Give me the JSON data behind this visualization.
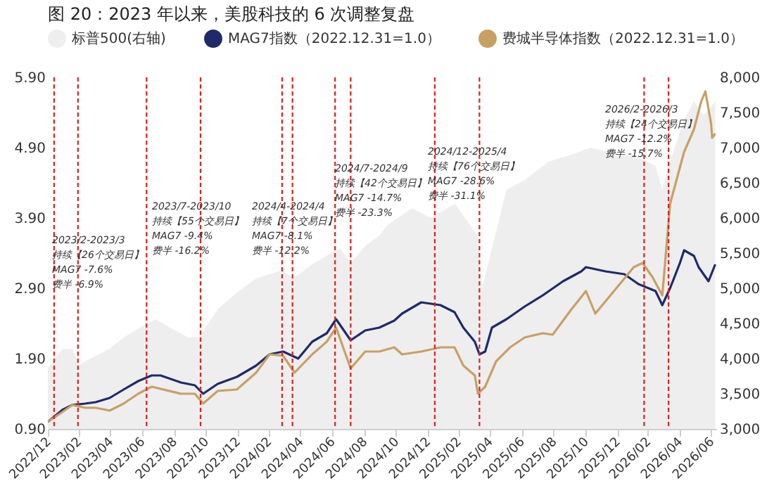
{
  "chart_data": {
    "type": "line",
    "title": "图 20：2023 年以来，美股科技的 6 次调整复盘",
    "xlim": [
      "2022-12-31",
      "2026-07-10"
    ],
    "xticks": [
      {
        "value": "2022-12-31",
        "label": "2022/12"
      },
      {
        "value": "2023-02-28",
        "label": "2023/02"
      },
      {
        "value": "2023-04-30",
        "label": "2023/04"
      },
      {
        "value": "2023-06-30",
        "label": "2023/06"
      },
      {
        "value": "2023-08-31",
        "label": "2023/08"
      },
      {
        "value": "2023-10-31",
        "label": "2023/10"
      },
      {
        "value": "2023-12-31",
        "label": "2023/12"
      },
      {
        "value": "2024-02-29",
        "label": "2024/02"
      },
      {
        "value": "2024-04-30",
        "label": "2024/04"
      },
      {
        "value": "2024-06-30",
        "label": "2024/06"
      },
      {
        "value": "2024-08-31",
        "label": "2024/08"
      },
      {
        "value": "2024-10-31",
        "label": "2024/10"
      },
      {
        "value": "2024-12-31",
        "label": "2024/12"
      },
      {
        "value": "2025-02-28",
        "label": "2025/02"
      },
      {
        "value": "2025-04-30",
        "label": "2025/04"
      },
      {
        "value": "2025-06-30",
        "label": "2025/06"
      },
      {
        "value": "2025-08-31",
        "label": "2025/08"
      },
      {
        "value": "2025-10-31",
        "label": "2025/10"
      },
      {
        "value": "2025-12-31",
        "label": "2025/12"
      },
      {
        "value": "2026-02-28",
        "label": "2026/02"
      },
      {
        "value": "2026-04-30",
        "label": "2026/04"
      },
      {
        "value": "2026-06-30",
        "label": "2026/06"
      }
    ],
    "ylim": [
      0.9,
      5.9
    ],
    "yticks": [
      {
        "value": 0.9,
        "label": "0.90"
      },
      {
        "value": 1.9,
        "label": "1.90"
      },
      {
        "value": 2.9,
        "label": "2.90"
      },
      {
        "value": 3.9,
        "label": "3.90"
      },
      {
        "value": 4.9,
        "label": "4.90"
      },
      {
        "value": 5.9,
        "label": "5.90"
      }
    ],
    "y2lim": [
      3000,
      8000
    ],
    "y2ticks": [
      {
        "value": 3000,
        "label": "3,000"
      },
      {
        "value": 3500,
        "label": "3,500"
      },
      {
        "value": 4000,
        "label": "4,000"
      },
      {
        "value": 4500,
        "label": "4,500"
      },
      {
        "value": 5000,
        "label": "5,000"
      },
      {
        "value": 5500,
        "label": "5,500"
      },
      {
        "value": 6000,
        "label": "6,000"
      },
      {
        "value": 6500,
        "label": "6,500"
      },
      {
        "value": 7000,
        "label": "7,000"
      },
      {
        "value": 7500,
        "label": "7,500"
      },
      {
        "value": 8000,
        "label": "8,000"
      }
    ],
    "grid": false,
    "legend": "top",
    "series": [
      {
        "name": "标普500(右轴)",
        "type": "area",
        "axis": "y2",
        "color": "#eeeeee",
        "x": [
          "2022-12-31",
          "2023-01-28",
          "2023-02-16",
          "2023-03-01",
          "2023-03-13",
          "2023-04-29",
          "2023-05-26",
          "2023-06-30",
          "2023-07-27",
          "2023-08-23",
          "2023-09-28",
          "2023-10-18",
          "2023-11-23",
          "2023-12-30",
          "2024-02-05",
          "2024-03-28",
          "2024-04-16",
          "2024-05-23",
          "2024-06-27",
          "2024-07-16",
          "2024-08-05",
          "2024-09-02",
          "2024-09-29",
          "2024-10-15",
          "2024-12-01",
          "2025-01-06",
          "2025-02-22",
          "2025-04-07",
          "2025-04-15",
          "2025-06-01",
          "2025-07-06",
          "2025-08-21",
          "2025-10-04",
          "2025-11-10",
          "2025-12-15",
          "2026-02-10",
          "2026-03-15",
          "2026-03-28",
          "2026-04-12",
          "2026-05-09",
          "2026-05-28",
          "2026-06-16",
          "2026-07-02",
          "2026-07-08"
        ],
        "values": [
          3860,
          4140,
          4140,
          3900,
          3960,
          4140,
          4300,
          4460,
          4560,
          4440,
          4300,
          4300,
          4700,
          4940,
          5140,
          5260,
          5140,
          5340,
          5500,
          5560,
          5360,
          5600,
          5750,
          5900,
          6140,
          6000,
          6200,
          5740,
          5000,
          6400,
          6540,
          6800,
          6900,
          7000,
          6940,
          6860,
          6740,
          6400,
          6800,
          7400,
          7660,
          7460,
          7600,
          7660
        ]
      },
      {
        "name": "MAG7指数（2022.12.31=1.0）",
        "color": "#1f2a6b",
        "x": [
          "2022-12-31",
          "2023-01-28",
          "2023-02-16",
          "2023-03-13",
          "2023-04-02",
          "2023-04-29",
          "2023-05-26",
          "2023-06-23",
          "2023-07-19",
          "2023-08-05",
          "2023-09-13",
          "2023-10-10",
          "2023-10-26",
          "2023-11-23",
          "2023-12-30",
          "2024-02-05",
          "2024-03-02",
          "2024-03-28",
          "2024-04-26",
          "2024-05-23",
          "2024-06-20",
          "2024-07-08",
          "2024-08-05",
          "2024-09-02",
          "2024-09-29",
          "2024-10-28",
          "2024-11-12",
          "2024-12-19",
          "2025-01-25",
          "2025-02-21",
          "2025-03-10",
          "2025-04-01",
          "2025-04-10",
          "2025-04-21",
          "2025-05-04",
          "2025-06-01",
          "2025-07-06",
          "2025-08-10",
          "2025-09-18",
          "2025-10-23",
          "2025-11-01",
          "2025-12-09",
          "2026-01-14",
          "2026-02-10",
          "2026-03-15",
          "2026-03-28",
          "2026-04-12",
          "2026-05-01",
          "2026-05-09",
          "2026-05-28",
          "2026-06-06",
          "2026-06-25",
          "2026-07-08"
        ],
        "values": [
          1.0,
          1.17,
          1.24,
          1.26,
          1.28,
          1.34,
          1.46,
          1.58,
          1.66,
          1.66,
          1.56,
          1.52,
          1.4,
          1.54,
          1.64,
          1.8,
          1.96,
          2.0,
          1.9,
          2.14,
          2.26,
          2.46,
          2.16,
          2.3,
          2.34,
          2.44,
          2.54,
          2.7,
          2.66,
          2.56,
          2.34,
          2.14,
          1.96,
          2.0,
          2.34,
          2.46,
          2.64,
          2.8,
          3.0,
          3.14,
          3.2,
          3.14,
          3.1,
          2.96,
          2.86,
          2.66,
          2.9,
          3.26,
          3.44,
          3.36,
          3.2,
          3.0,
          3.24
        ]
      },
      {
        "name": "费城半导体指数（2022.12.31=1.0）",
        "color": "#c8a064",
        "x": [
          "2022-12-31",
          "2023-01-28",
          "2023-02-16",
          "2023-03-13",
          "2023-04-02",
          "2023-04-29",
          "2023-05-26",
          "2023-06-23",
          "2023-07-19",
          "2023-09-13",
          "2023-10-10",
          "2023-10-26",
          "2023-11-23",
          "2023-12-30",
          "2024-02-05",
          "2024-03-02",
          "2024-03-28",
          "2024-04-19",
          "2024-05-23",
          "2024-06-20",
          "2024-07-08",
          "2024-08-05",
          "2024-09-02",
          "2024-09-29",
          "2024-10-28",
          "2024-11-12",
          "2024-12-19",
          "2025-01-25",
          "2025-02-21",
          "2025-03-10",
          "2025-04-01",
          "2025-04-07",
          "2025-04-21",
          "2025-05-12",
          "2025-06-08",
          "2025-07-06",
          "2025-08-10",
          "2025-08-29",
          "2025-10-04",
          "2025-11-01",
          "2025-11-19",
          "2025-12-25",
          "2026-02-01",
          "2026-02-18",
          "2026-03-09",
          "2026-03-28",
          "2026-04-04",
          "2026-04-12",
          "2026-05-09",
          "2026-05-28",
          "2026-06-11",
          "2026-06-19",
          "2026-06-30",
          "2026-07-02",
          "2026-07-08"
        ],
        "values": [
          1.0,
          1.14,
          1.24,
          1.2,
          1.2,
          1.16,
          1.26,
          1.4,
          1.5,
          1.4,
          1.4,
          1.26,
          1.44,
          1.46,
          1.7,
          1.96,
          1.94,
          1.7,
          1.96,
          2.14,
          2.34,
          1.76,
          2.0,
          2.0,
          2.06,
          1.96,
          2.0,
          2.06,
          2.06,
          1.8,
          1.66,
          1.4,
          1.5,
          1.86,
          2.06,
          2.2,
          2.26,
          2.24,
          2.6,
          2.86,
          2.54,
          2.86,
          3.2,
          3.26,
          3.06,
          2.8,
          3.4,
          4.1,
          4.84,
          5.16,
          5.56,
          5.7,
          5.24,
          5.04,
          5.1
        ]
      }
    ],
    "ref_lines": [
      {
        "axis": "x",
        "value": "2023-01-12",
        "color": "#e02020",
        "line_style": "dashed"
      },
      {
        "axis": "x",
        "value": "2023-02-27",
        "color": "#e02020",
        "line_style": "dashed"
      },
      {
        "axis": "x",
        "value": "2023-07-09",
        "color": "#e02020",
        "line_style": "dashed"
      },
      {
        "axis": "x",
        "value": "2023-10-21",
        "color": "#e02020",
        "line_style": "dashed"
      },
      {
        "axis": "x",
        "value": "2024-03-26",
        "color": "#e02020",
        "line_style": "dashed"
      },
      {
        "axis": "x",
        "value": "2024-04-15",
        "color": "#e02020",
        "line_style": "dashed"
      },
      {
        "axis": "x",
        "value": "2024-07-06",
        "color": "#e02020",
        "line_style": "dashed"
      },
      {
        "axis": "x",
        "value": "2024-08-05",
        "color": "#e02020",
        "line_style": "dashed"
      },
      {
        "axis": "x",
        "value": "2025-01-14",
        "color": "#e02020",
        "line_style": "dashed"
      },
      {
        "axis": "x",
        "value": "2025-04-10",
        "color": "#e02020",
        "line_style": "dashed"
      },
      {
        "axis": "x",
        "value": "2026-02-21",
        "color": "#e02020",
        "line_style": "dashed"
      },
      {
        "axis": "x",
        "value": "2026-04-09",
        "color": "#e02020",
        "line_style": "dashed"
      }
    ],
    "annotations": [
      "2023/2-2023/3",
      "持续【26个交易日】",
      "MAG7 -7.6%",
      "费半 -6.9%",
      "2023/7-2023/10",
      "持续【55个交易日】",
      "MAG7 -9.4%",
      "费半 -16.2%",
      "2024/4-2024/4",
      "持续【7个交易日】",
      "MAG7 -8.1%",
      "费半 -12.2%",
      "2024/7-2024/9",
      "持续【42个交易日】",
      "MAG7 -14.7%",
      "费半 -23.3%",
      "2024/12-2025/4",
      "持续【76个交易日】",
      "MAG7 -28.6%",
      "费半 -31.1%",
      "2026/2-2026/3",
      "持续【24个交易日】",
      "MAG7 -12.2%",
      "费半 -15.7%"
    ]
  }
}
